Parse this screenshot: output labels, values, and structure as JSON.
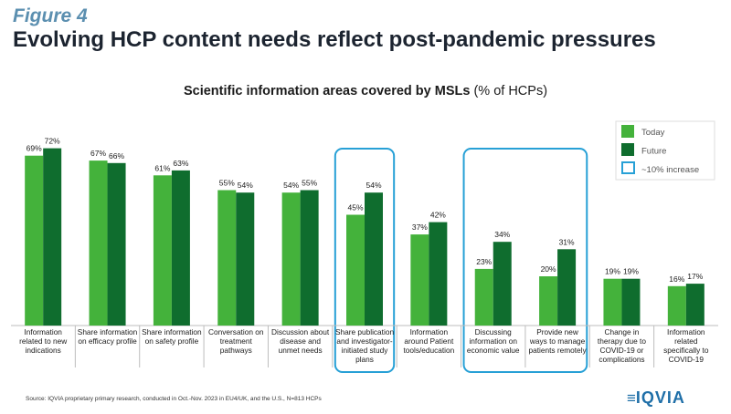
{
  "header": {
    "figure_label": "Figure 4",
    "title": "Evolving HCP content needs reflect post-pandemic pressures"
  },
  "chart_title": {
    "bold": "Scientific information areas covered by MSLs",
    "normal": " (% of HCPs)"
  },
  "colors": {
    "today": "#44b23b",
    "future": "#0f6d2e",
    "highlight": "#27a0d6",
    "divider": "#bdbdbd"
  },
  "chart_data": {
    "type": "bar",
    "title": "Scientific information areas covered by MSLs (% of HCPs)",
    "categories": [
      [
        "Information",
        "related to new",
        "indications"
      ],
      [
        "Share information",
        "on efficacy profile"
      ],
      [
        "Share information",
        "on safety profile"
      ],
      [
        "Conversation on",
        "treatment",
        "pathways"
      ],
      [
        "Discussion about",
        "disease and",
        "unmet needs"
      ],
      [
        "Share publication",
        "and investigator-",
        "initiated study",
        "plans"
      ],
      [
        "Information",
        "around Patient",
        "tools/education"
      ],
      [
        "Discussing",
        "information on",
        "economic value"
      ],
      [
        "Provide new",
        "ways to manage",
        "patients remotely"
      ],
      [
        "Change in",
        "therapy due to",
        "COVID-19 or",
        "complications"
      ],
      [
        "Information",
        "related",
        "specifically to",
        "COVID-19"
      ]
    ],
    "series": [
      {
        "name": "Today",
        "values": [
          69,
          67,
          61,
          55,
          54,
          45,
          37,
          23,
          20,
          19,
          16
        ]
      },
      {
        "name": "Future",
        "values": [
          72,
          66,
          63,
          54,
          55,
          54,
          42,
          34,
          31,
          19,
          17
        ]
      }
    ],
    "value_labels_suffix": "%",
    "ylim": [
      0,
      80
    ],
    "grid": false,
    "legend": {
      "position": "top-right",
      "entries": [
        "Today",
        "Future",
        "~10% increase"
      ]
    },
    "highlight_groups": [
      [
        5
      ],
      [
        7,
        8
      ]
    ]
  },
  "footer": {
    "source": "Source: IQVIA proprietary primary research, conducted in Oct.-Nov. 2023 in EU4/UK, and the U.S., N=813 HCPs",
    "logo": "IQVIA"
  }
}
